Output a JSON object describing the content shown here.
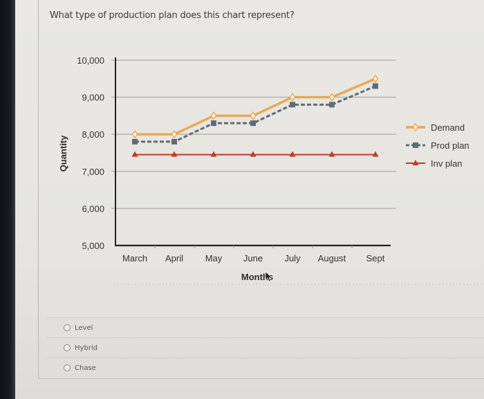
{
  "question": {
    "text": "What type of production plan does this chart represent?"
  },
  "chart_data": {
    "type": "line",
    "title": "",
    "xlabel": "Months",
    "ylabel": "Quantity",
    "categories": [
      "March",
      "April",
      "May",
      "June",
      "July",
      "August",
      "Sept"
    ],
    "series": [
      {
        "name": "Demand",
        "color": "#e9a94e",
        "marker": "diamond-open",
        "line": "solid",
        "values": [
          8000,
          8000,
          8500,
          8500,
          9000,
          9000,
          9500
        ]
      },
      {
        "name": "Prod plan",
        "color": "#5e6b78",
        "marker": "square",
        "line": "dashed",
        "values": [
          7800,
          7800,
          8300,
          8300,
          8800,
          8800,
          9300
        ]
      },
      {
        "name": "Inv plan",
        "color": "#c0392b",
        "marker": "triangle",
        "line": "solid",
        "values": [
          7450,
          7450,
          7450,
          7450,
          7450,
          7450,
          7450
        ]
      }
    ],
    "yticks": [
      "10,000",
      "9,000",
      "8,000",
      "7,000",
      "6,000",
      "5,000"
    ],
    "ylim": [
      5000,
      10000
    ],
    "grid": true,
    "legend_position": "right"
  },
  "choices": [
    {
      "label": "Level"
    },
    {
      "label": "Hybrid"
    },
    {
      "label": "Chase"
    }
  ]
}
